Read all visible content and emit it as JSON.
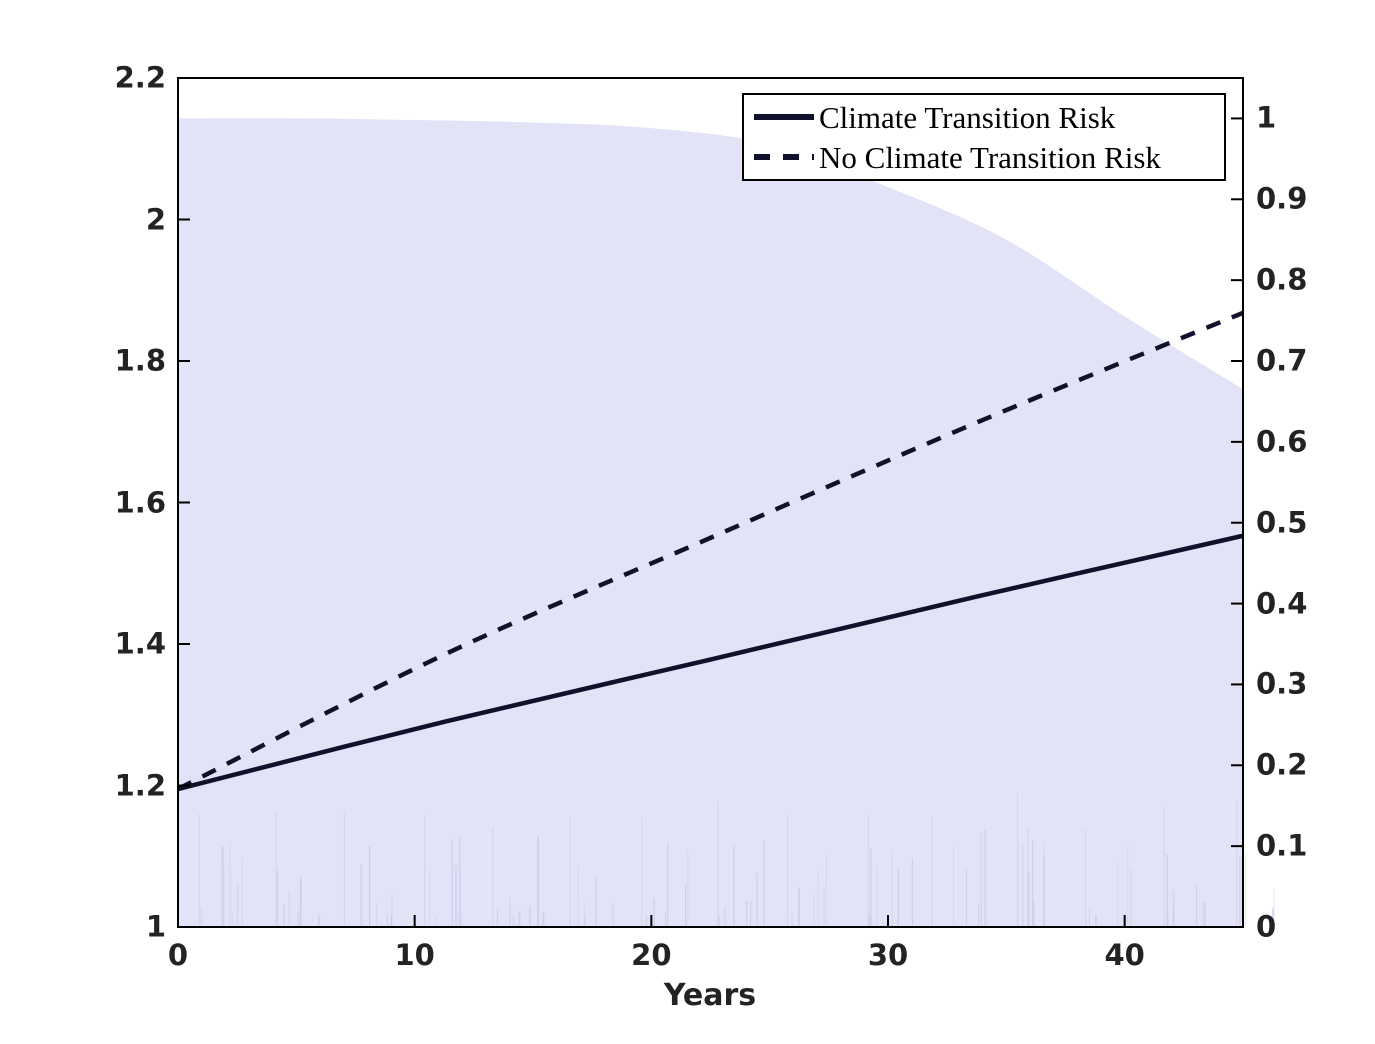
{
  "chart_data": {
    "type": "line",
    "title": "",
    "xlabel": "Years",
    "x_range": [
      0,
      45
    ],
    "x_ticks": {
      "values": [
        0,
        10,
        20,
        30,
        40
      ],
      "labels": [
        "0",
        "10",
        "20",
        "30",
        "40"
      ]
    },
    "left_axis": {
      "range": [
        1,
        2.2
      ],
      "tick_values": [
        1,
        1.2,
        1.4,
        1.6,
        1.8,
        2,
        2.2
      ],
      "tick_labels": [
        "1",
        "1.2",
        "1.4",
        "1.6",
        "1.8",
        "2",
        "2.2"
      ]
    },
    "right_axis": {
      "range": [
        0,
        1.05
      ],
      "tick_values": [
        0,
        0.1,
        0.2,
        0.3,
        0.4,
        0.5,
        0.6,
        0.7,
        0.8,
        0.9,
        1
      ],
      "tick_labels": [
        "0",
        "0.1",
        "0.2",
        "0.3",
        "0.4",
        "0.5",
        "0.6",
        "0.7",
        "0.8",
        "0.9",
        "1"
      ]
    },
    "grid": false,
    "legend_position": "top-right",
    "series": [
      {
        "name": "Climate Transition Risk",
        "axis": "left",
        "style": "solid",
        "x": [
          0,
          11.25,
          22.5,
          33.75,
          45
        ],
        "y": [
          1.195,
          1.29,
          1.378,
          1.467,
          1.553
        ]
      },
      {
        "name": "No Climate Transition Risk",
        "axis": "left",
        "style": "dashed",
        "x": [
          0,
          11.25,
          22.5,
          33.75,
          45
        ],
        "y": [
          1.195,
          1.385,
          1.55,
          1.713,
          1.868
        ]
      }
    ],
    "area_series": {
      "name": "shaded probability region",
      "axis": "right",
      "x": [
        0,
        5,
        10,
        15,
        20,
        25,
        30,
        35,
        40,
        45
      ],
      "y": [
        1.0,
        1.0,
        0.998,
        0.995,
        0.988,
        0.968,
        0.915,
        0.85,
        0.755,
        0.665
      ]
    },
    "colors": {
      "line": "#11112c",
      "area_fill": "#e3e3f8",
      "area_streaks": "#c4c4e8",
      "axis": "#000000",
      "tick_label": "#232323",
      "background": "#ffffff"
    }
  }
}
